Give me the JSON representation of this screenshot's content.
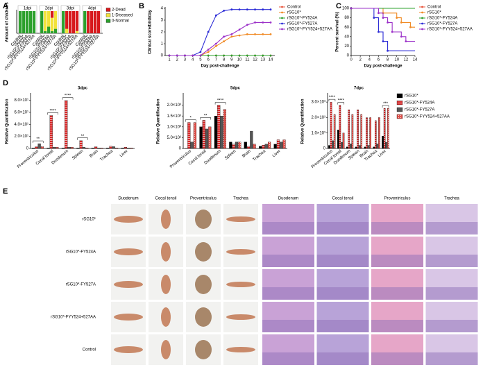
{
  "chart_data": [
    {
      "type": "stacked_bar",
      "panel": "A",
      "ylabel": "Amount of chickens",
      "groups": [
        "1dpi",
        "2dpi",
        "3dpi",
        "4dpi"
      ],
      "categories": [
        "Control",
        "rSG10*",
        "rSG10*-FY524A",
        "rSG10*-FY527A",
        "rSG10*-FYY524+527AA",
        "Control",
        "rSG10*",
        "rSG10*-FY524A",
        "rSG10*-FY527A",
        "rSG10*-FYY524+527AA",
        "Control",
        "rSG10*",
        "rSG10*-FY524A",
        "rSG10*-FY527A",
        "rSG10*-FYY524+527AA",
        "Control",
        "rSG10*",
        "rSG10*-FY524A",
        "rSG10*-FY527A",
        "rSG10*-FYY524+527AA"
      ],
      "ylim": [
        0,
        10
      ],
      "legend": "upper right",
      "series": [
        {
          "name": "2-Dead",
          "color": "#d7191c",
          "values": [
            0,
            0,
            0,
            0,
            0,
            0,
            0,
            0,
            3,
            0,
            0,
            8,
            10,
            10,
            9,
            0,
            10,
            10,
            10,
            10
          ]
        },
        {
          "name": "1-Diseased",
          "color": "#f2e23a",
          "values": [
            0,
            0,
            0,
            0,
            0,
            0,
            9,
            7,
            6,
            8,
            0,
            2,
            0,
            0,
            1,
            0,
            0,
            0,
            0,
            0
          ]
        },
        {
          "name": "0-Normal",
          "color": "#2ca02c",
          "values": [
            10,
            10,
            10,
            10,
            10,
            10,
            1,
            3,
            1,
            2,
            10,
            0,
            0,
            0,
            0,
            10,
            0,
            0,
            0,
            0
          ]
        }
      ]
    },
    {
      "type": "line",
      "panel": "B",
      "xlabel": "Day post-challenge",
      "ylabel": "Clinical score/bird/day",
      "x": [
        1,
        2,
        3,
        4,
        5,
        6,
        7,
        8,
        9,
        10,
        11,
        12,
        13,
        14
      ],
      "xlim": [
        1,
        14
      ],
      "xticks": [
        1,
        2,
        3,
        4,
        5,
        6,
        7,
        8,
        9,
        10,
        11,
        12,
        13,
        14
      ],
      "ylim": [
        0,
        4
      ],
      "yticks": [
        0,
        1,
        2,
        3,
        4
      ],
      "legend": "right",
      "series": [
        {
          "name": "Control",
          "color": "#e8553c",
          "values": [
            0,
            0,
            0,
            0,
            0,
            0,
            0,
            0,
            0,
            0,
            0,
            0,
            0,
            0
          ]
        },
        {
          "name": "rSG10*",
          "color": "#f08a24",
          "values": [
            0,
            0,
            0,
            0,
            0,
            0.3,
            0.8,
            1.2,
            1.6,
            1.7,
            1.8,
            1.8,
            1.8,
            1.8
          ]
        },
        {
          "name": "rSG10*-FY524A",
          "color": "#2ca02c",
          "values": [
            0,
            0,
            0,
            0,
            0,
            0,
            0,
            0,
            0,
            0,
            0,
            0,
            0,
            0
          ]
        },
        {
          "name": "rSG10*-FY527A",
          "color": "#2b2bd6",
          "values": [
            0,
            0,
            0,
            0,
            0.3,
            2.0,
            3.4,
            3.8,
            3.9,
            3.9,
            3.9,
            3.9,
            3.9,
            3.9
          ]
        },
        {
          "name": "rSG10*-FYY524+527AA",
          "color": "#9b30c8",
          "values": [
            0,
            0,
            0,
            0,
            0,
            0.5,
            1.0,
            1.6,
            1.8,
            2.2,
            2.6,
            2.8,
            2.8,
            2.8
          ]
        }
      ]
    },
    {
      "type": "step",
      "panel": "C",
      "xlabel": "Day post-challenge",
      "ylabel": "Percent survival (%)",
      "x": [
        0,
        1,
        2,
        3,
        4,
        5,
        6,
        7,
        8,
        9,
        10,
        11,
        12,
        13,
        14
      ],
      "xlim": [
        0,
        14
      ],
      "xticks": [
        0,
        2,
        4,
        6,
        8,
        10,
        12,
        14
      ],
      "ylim": [
        0,
        100
      ],
      "yticks": [
        0,
        20,
        40,
        60,
        80,
        100
      ],
      "legend": "right",
      "series": [
        {
          "name": "Control",
          "color": "#e8553c",
          "values": [
            100,
            100,
            100,
            100,
            100,
            100,
            100,
            100,
            100,
            100,
            100,
            100,
            100,
            100,
            100
          ]
        },
        {
          "name": "rSG10*",
          "color": "#f08a24",
          "values": [
            100,
            100,
            100,
            100,
            100,
            100,
            100,
            90,
            90,
            90,
            80,
            70,
            70,
            60,
            60
          ]
        },
        {
          "name": "rSG10*-FY524A",
          "color": "#2ca02c",
          "values": [
            100,
            100,
            100,
            100,
            100,
            100,
            100,
            100,
            100,
            100,
            100,
            100,
            100,
            100,
            100
          ]
        },
        {
          "name": "rSG10*-FY527A",
          "color": "#2b2bd6",
          "values": [
            100,
            100,
            100,
            100,
            100,
            80,
            50,
            30,
            10,
            10,
            10,
            10,
            10,
            10,
            10
          ]
        },
        {
          "name": "rSG10*-FYY524+527AA",
          "color": "#9b30c8",
          "values": [
            100,
            100,
            100,
            100,
            100,
            100,
            90,
            80,
            70,
            50,
            50,
            40,
            30,
            30,
            30
          ]
        }
      ]
    },
    {
      "type": "bar",
      "panel": "D",
      "title": "3dpc",
      "ylabel": "Relative Quantification",
      "categories": [
        "Proventriculus",
        "Cecal tonsil",
        "Duodenum",
        "Spleen",
        "Brain",
        "Trachea",
        "Liver"
      ],
      "ylim": [
        0,
        90
      ],
      "yticks": [
        0,
        {
          "value": 20,
          "label": "2.0×10¹"
        },
        {
          "value": 40,
          "label": "4.0×10¹"
        },
        {
          "value": 60,
          "label": "6.0×10¹"
        },
        {
          "value": 80,
          "label": "8.0×10¹"
        }
      ],
      "significance": [
        "**",
        "****",
        "****",
        "**",
        null,
        null,
        null
      ],
      "series": [
        {
          "name": "rSG10*",
          "color": "#000000",
          "hatch": null,
          "values": [
            1,
            1,
            1,
            1,
            1,
            1,
            1
          ]
        },
        {
          "name": "rSG10*-FY524A",
          "color": "#d62728",
          "hatch": "stripes",
          "values": [
            3,
            55,
            80,
            13,
            3,
            4,
            2
          ]
        },
        {
          "name": "rSG10*-FY527A",
          "color": "#555555",
          "hatch": null,
          "values": [
            8,
            2,
            2,
            2,
            1,
            3,
            1
          ]
        },
        {
          "name": "rSG10*-FYY524+527AA",
          "color": "#e0504a",
          "hatch": "dots",
          "values": [
            3,
            2,
            2,
            1,
            1,
            1,
            1
          ]
        }
      ]
    },
    {
      "type": "bar",
      "title": "5dpc",
      "ylabel": "Relative Quantification",
      "categories": [
        "Proventriculus",
        "Cecal tonsil",
        "Duodenum",
        "Spleen",
        "Brain",
        "Trachea",
        "Liver"
      ],
      "ylim": [
        0,
        2500
      ],
      "yticks": [
        0,
        {
          "value": 500,
          "label": "5.0×10²"
        },
        {
          "value": 1000,
          "label": "1.0×10³"
        },
        {
          "value": 1500,
          "label": "1.5×10³"
        },
        {
          "value": 2000,
          "label": "2.0×10³"
        }
      ],
      "significance": [
        "*",
        "**",
        "****",
        null,
        null,
        null,
        null
      ],
      "series": [
        {
          "name": "rSG10*",
          "color": "#000000",
          "hatch": null,
          "values": [
            10,
            1000,
            1500,
            300,
            300,
            100,
            200
          ]
        },
        {
          "name": "rSG10*-FY524A",
          "color": "#d62728",
          "hatch": "stripes",
          "values": [
            1200,
            1300,
            2000,
            200,
            100,
            150,
            400
          ]
        },
        {
          "name": "rSG10*-FY527A",
          "color": "#555555",
          "hatch": null,
          "values": [
            300,
            900,
            1500,
            300,
            800,
            200,
            300
          ]
        },
        {
          "name": "rSG10*-FYY524+527AA",
          "color": "#e0504a",
          "hatch": "dots",
          "values": [
            1200,
            1000,
            1800,
            300,
            200,
            300,
            400
          ]
        }
      ]
    },
    {
      "type": "bar",
      "title": "7dpc",
      "ylabel": "Relative Quantification",
      "legend": "right",
      "categories": [
        "Proventriculus",
        "Cecal tonsil",
        "Duodenum",
        "Spleen",
        "Brain",
        "Trachea",
        "Liver"
      ],
      "ylim": [
        0,
        3500
      ],
      "yticks": [
        0,
        {
          "value": 1000,
          "label": "1.0×10³"
        },
        {
          "value": 2000,
          "label": "2.0×10³"
        },
        {
          "value": 3000,
          "label": "3.0×10³"
        }
      ],
      "significance": [
        "****",
        "****",
        null,
        null,
        null,
        null,
        "***"
      ],
      "series": [
        {
          "name": "rSG10*",
          "color": "#000000",
          "hatch": null,
          "values": [
            200,
            1200,
            100,
            100,
            100,
            100,
            800
          ]
        },
        {
          "name": "rSG10*-FY524A",
          "color": "#d62728",
          "hatch": "stripes",
          "values": [
            3000,
            2800,
            2500,
            2500,
            2000,
            1800,
            2600
          ]
        },
        {
          "name": "rSG10*-FY527A",
          "color": "#555555",
          "hatch": null,
          "values": [
            500,
            400,
            300,
            200,
            200,
            300,
            400
          ]
        },
        {
          "name": "rSG10*-FYY524+527AA",
          "color": "#e0504a",
          "hatch": "dots",
          "values": [
            2200,
            1000,
            2200,
            2200,
            2000,
            2000,
            2600
          ]
        }
      ]
    }
  ],
  "panel_e": {
    "label": "E",
    "columns": [
      "Duodenum",
      "Cecal tonsil",
      "Proventriculus",
      "Trachea",
      "Duodenum",
      "Cecal tonsil",
      "Proventriculus",
      "Trachea"
    ],
    "rows": [
      "rSG10*",
      "rSG10*-FY524A",
      "rSG10*-FY527A",
      "rSG10*-FYY524+527AA",
      "Control"
    ]
  }
}
